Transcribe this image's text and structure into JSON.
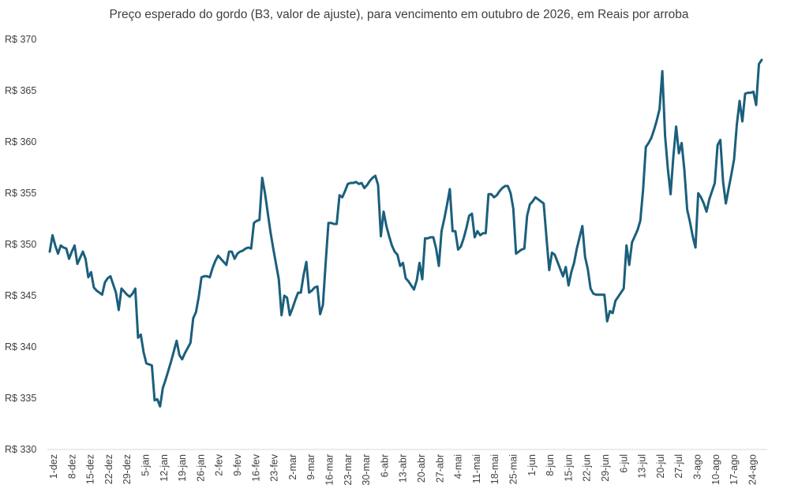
{
  "chart_data": {
    "type": "line",
    "title": "Preço esperado do gordo (B3, valor de ajuste), para vencimento em outubro de 2026, em Reais por arroba",
    "xlabel": "",
    "ylabel": "",
    "ylim": [
      330,
      370
    ],
    "yticks": [
      330,
      335,
      340,
      345,
      350,
      355,
      360,
      365,
      370
    ],
    "ytick_prefix": "R$ ",
    "grid": false,
    "legend": "none",
    "x_tick_labels": [
      "1-dez",
      "8-dez",
      "15-dez",
      "22-dez",
      "29-dez",
      "5-jan",
      "12-jan",
      "19-jan",
      "26-jan",
      "2-fev",
      "9-fev",
      "16-fev",
      "23-fev",
      "2-mar",
      "9-mar",
      "16-mar",
      "23-mar",
      "30-mar",
      "6-abr",
      "13-abr",
      "20-abr",
      "27-abr",
      "4-mai",
      "11-mai",
      "18-mai",
      "25-mai",
      "1-jun",
      "8-jun",
      "15-jun",
      "22-jun",
      "29-jun",
      "6-jul",
      "13-jul",
      "20-jul",
      "27-jul",
      "3-ago",
      "10-ago",
      "17-ago",
      "24-ago"
    ],
    "series": [
      {
        "color": "#1b5f7c",
        "values": [
          349.3,
          350.9,
          349.9,
          349.1,
          349.9,
          349.7,
          349.6,
          348.6,
          349.3,
          349.9,
          348.1,
          348.7,
          349.3,
          348.6,
          346.8,
          347.3,
          345.8,
          345.5,
          345.3,
          345.1,
          346.3,
          346.7,
          346.9,
          346.1,
          345.3,
          343.6,
          345.7,
          345.4,
          345.1,
          344.9,
          345.2,
          345.7,
          340.9,
          341.2,
          339.5,
          338.4,
          338.3,
          338.2,
          334.8,
          334.9,
          334.2,
          336.0,
          336.8,
          337.7,
          338.6,
          339.6,
          340.6,
          339.2,
          338.8,
          339.4,
          339.9,
          340.4,
          342.8,
          343.4,
          344.9,
          346.8,
          346.9,
          346.9,
          346.8,
          347.7,
          348.4,
          348.9,
          348.6,
          348.3,
          348.0,
          349.3,
          349.3,
          348.6,
          349.1,
          349.3,
          349.4,
          349.6,
          349.7,
          349.6,
          352.1,
          352.3,
          352.4,
          356.5,
          355.0,
          353.1,
          351.2,
          349.6,
          348.1,
          346.6,
          343.1,
          345.0,
          344.8,
          343.1,
          343.8,
          344.6,
          345.3,
          345.3,
          347.0,
          348.3,
          345.3,
          345.5,
          345.8,
          345.9,
          343.2,
          344.1,
          348.2,
          352.1,
          352.1,
          352.0,
          352.0,
          354.8,
          354.6,
          355.2,
          355.9,
          356.0,
          356.0,
          356.1,
          355.9,
          356.0,
          355.5,
          355.8,
          356.2,
          356.5,
          356.7,
          355.8,
          350.8,
          353.2,
          351.8,
          350.8,
          349.9,
          349.3,
          349.0,
          347.9,
          348.2,
          346.7,
          346.4,
          346.0,
          345.6,
          346.5,
          348.2,
          346.6,
          350.6,
          350.6,
          350.7,
          350.7,
          349.6,
          347.9,
          351.3,
          352.5,
          353.9,
          355.4,
          351.3,
          351.3,
          349.5,
          349.8,
          350.6,
          351.6,
          352.8,
          353.0,
          350.7,
          351.3,
          350.9,
          351.1,
          351.1,
          354.9,
          354.9,
          354.6,
          354.8,
          355.2,
          355.5,
          355.7,
          355.7,
          355.0,
          353.5,
          349.1,
          349.3,
          349.5,
          349.6,
          352.8,
          353.9,
          354.2,
          354.6,
          354.4,
          354.2,
          354.0,
          350.7,
          347.5,
          349.2,
          349.0,
          348.3,
          347.6,
          346.9,
          347.8,
          346.0,
          347.3,
          348.2,
          349.6,
          350.7,
          351.8,
          348.8,
          347.6,
          345.7,
          345.2,
          345.1,
          345.1,
          345.1,
          345.1,
          342.5,
          343.5,
          343.3,
          344.5,
          344.9,
          345.3,
          345.7,
          349.9,
          348.0,
          350.2,
          350.8,
          351.4,
          352.3,
          355.3,
          359.5,
          359.9,
          360.4,
          361.2,
          362.1,
          363.2,
          366.9,
          360.6,
          357.4,
          354.9,
          358.6,
          361.5,
          358.9,
          359.9,
          357.2,
          353.4,
          352.2,
          350.8,
          349.7,
          355.0,
          354.6,
          354.0,
          353.2,
          354.4,
          355.2,
          356.0,
          359.7,
          360.2,
          356.1,
          354.0,
          355.4,
          356.8,
          358.3,
          361.7,
          364.0,
          362.0,
          364.7,
          364.8,
          364.8,
          364.9,
          363.6,
          367.6,
          368.0
        ]
      }
    ]
  }
}
